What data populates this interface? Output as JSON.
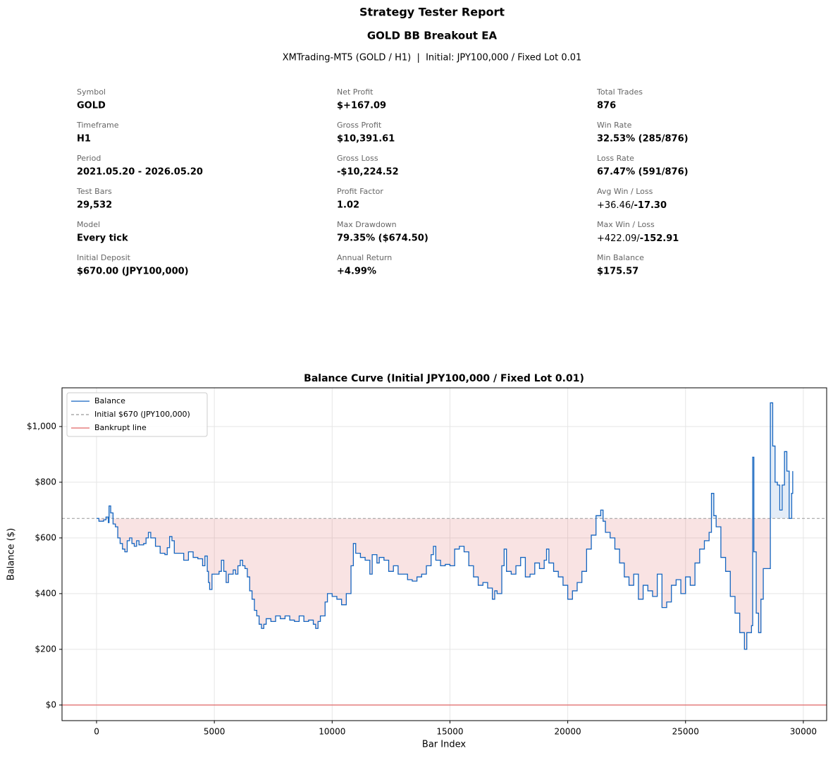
{
  "header": {
    "title": "Strategy Tester Report",
    "subtitle": "GOLD BB Breakout EA",
    "info": "XMTrading-MT5 (GOLD / H1)  |  Initial: JPY100,000 / Fixed Lot 0.01"
  },
  "stats": [
    [
      {
        "label": "Symbol",
        "value": "GOLD"
      },
      {
        "label": "Timeframe",
        "value": "H1"
      },
      {
        "label": "Period",
        "value": "2021.05.20 - 2026.05.20"
      },
      {
        "label": "Test Bars",
        "value": "29,532"
      },
      {
        "label": "Model",
        "value": "Every tick"
      },
      {
        "label": "Initial Deposit",
        "value": "$670.00 (JPY100,000)"
      }
    ],
    [
      {
        "label": "Net Profit",
        "value": "$+167.09"
      },
      {
        "label": "Gross Profit",
        "value": "$10,391.61"
      },
      {
        "label": "Gross Loss",
        "value": "-$10,224.52"
      },
      {
        "label": "Profit Factor",
        "value": "1.02"
      },
      {
        "label": "Max Drawdown",
        "value": "79.35% ($674.50)"
      },
      {
        "label": "Annual Return",
        "value": "+4.99%"
      }
    ],
    [
      {
        "label": "Total Trades",
        "value": "876"
      },
      {
        "label": "Win Rate",
        "value": "32.53% (285/876)"
      },
      {
        "label": "Loss Rate",
        "value": "67.47% (591/876)"
      },
      {
        "label": "Avg Win / Loss",
        "value": [
          "+36.46/",
          "-17.30"
        ]
      },
      {
        "label": "Max Win / Loss",
        "value": [
          "+422.09/",
          "-152.91"
        ]
      },
      {
        "label": "Min Balance",
        "value": "$175.57"
      }
    ]
  ],
  "chart_data": {
    "type": "line",
    "title": "Balance Curve (Initial JPY100,000 / Fixed Lot 0.01)",
    "x_label": "Bar Index",
    "y_label": "Balance ($)",
    "xlim": [
      -1466,
      30990
    ],
    "ylim": [
      -56,
      1139
    ],
    "xticks": [
      0,
      5000,
      10000,
      15000,
      20000,
      25000,
      30000
    ],
    "yticks": [
      {
        "value": 0,
        "label": "$0"
      },
      {
        "value": 200,
        "label": "$200"
      },
      {
        "value": 400,
        "label": "$400"
      },
      {
        "value": 600,
        "label": "$600"
      },
      {
        "value": 800,
        "label": "$800"
      },
      {
        "value": 1000,
        "label": "$1,000"
      }
    ],
    "grid": true,
    "legend": "upper left",
    "series": [
      {
        "name": "Balance",
        "color": "#1565c0",
        "x": [
          0,
          100,
          300,
          400,
          500,
          530,
          600,
          700,
          800,
          900,
          1000,
          1100,
          1200,
          1300,
          1400,
          1500,
          1600,
          1700,
          1800,
          2000,
          2100,
          2200,
          2300,
          2500,
          2700,
          2900,
          3000,
          3100,
          3200,
          3300,
          3500,
          3700,
          3900,
          4100,
          4300,
          4500,
          4600,
          4700,
          4750,
          4800,
          4900,
          5000,
          5200,
          5300,
          5400,
          5500,
          5600,
          5800,
          5900,
          6000,
          6100,
          6200,
          6300,
          6400,
          6500,
          6600,
          6700,
          6800,
          6900,
          7000,
          7100,
          7200,
          7400,
          7600,
          7800,
          8000,
          8200,
          8400,
          8600,
          8800,
          9000,
          9200,
          9300,
          9400,
          9500,
          9700,
          9800,
          10000,
          10200,
          10400,
          10600,
          10800,
          10900,
          11000,
          11200,
          11400,
          11600,
          11700,
          11900,
          12000,
          12200,
          12400,
          12600,
          12800,
          13000,
          13200,
          13400,
          13600,
          13800,
          14000,
          14200,
          14300,
          14400,
          14600,
          14800,
          15000,
          15200,
          15400,
          15600,
          15800,
          16000,
          16200,
          16400,
          16600,
          16800,
          16900,
          17000,
          17200,
          17300,
          17400,
          17600,
          17800,
          18000,
          18200,
          18400,
          18600,
          18800,
          19000,
          19100,
          19200,
          19400,
          19600,
          19800,
          20000,
          20200,
          20400,
          20600,
          20800,
          21000,
          21200,
          21400,
          21500,
          21600,
          21800,
          22000,
          22200,
          22400,
          22600,
          22800,
          23000,
          23200,
          23400,
          23600,
          23800,
          24000,
          24200,
          24400,
          24600,
          24800,
          25000,
          25200,
          25400,
          25600,
          25800,
          26000,
          26100,
          26200,
          26300,
          26500,
          26700,
          26900,
          27100,
          27300,
          27500,
          27600,
          27800,
          27850,
          27900,
          28000,
          28100,
          28200,
          28300,
          28500,
          28600,
          28700,
          28800,
          28900,
          29000,
          29100,
          29200,
          29300,
          29400,
          29500,
          29550
        ],
        "values": [
          670,
          660,
          665,
          675,
          655,
          715,
          690,
          650,
          640,
          600,
          580,
          560,
          550,
          590,
          600,
          580,
          570,
          590,
          575,
          580,
          600,
          620,
          600,
          570,
          545,
          540,
          565,
          605,
          590,
          545,
          545,
          520,
          550,
          530,
          525,
          500,
          535,
          480,
          440,
          415,
          470,
          470,
          480,
          520,
          480,
          440,
          470,
          485,
          470,
          500,
          520,
          500,
          490,
          460,
          410,
          380,
          340,
          320,
          290,
          275,
          290,
          310,
          300,
          320,
          310,
          320,
          305,
          300,
          320,
          300,
          305,
          290,
          275,
          300,
          320,
          370,
          400,
          390,
          380,
          360,
          400,
          500,
          580,
          545,
          530,
          520,
          470,
          540,
          510,
          530,
          520,
          480,
          500,
          470,
          470,
          450,
          445,
          460,
          470,
          500,
          540,
          570,
          520,
          500,
          505,
          500,
          560,
          570,
          550,
          500,
          460,
          430,
          440,
          420,
          380,
          410,
          400,
          500,
          560,
          480,
          470,
          500,
          530,
          460,
          470,
          510,
          490,
          520,
          560,
          510,
          480,
          460,
          430,
          380,
          410,
          440,
          480,
          560,
          610,
          680,
          700,
          660,
          620,
          600,
          560,
          510,
          460,
          430,
          470,
          380,
          430,
          410,
          390,
          470,
          350,
          370,
          430,
          450,
          400,
          460,
          430,
          510,
          560,
          590,
          620,
          760,
          680,
          640,
          530,
          480,
          390,
          330,
          260,
          200,
          260,
          285,
          890,
          550,
          330,
          260,
          380,
          490,
          490,
          1085,
          930,
          800,
          790,
          700,
          790,
          910,
          840,
          670,
          760,
          840
        ]
      },
      {
        "name": "Initial $670 (JPY100,000)",
        "color": "#999999",
        "value": 670
      },
      {
        "name": "Bankrupt line",
        "color": "#e06666",
        "value": 0
      }
    ]
  }
}
